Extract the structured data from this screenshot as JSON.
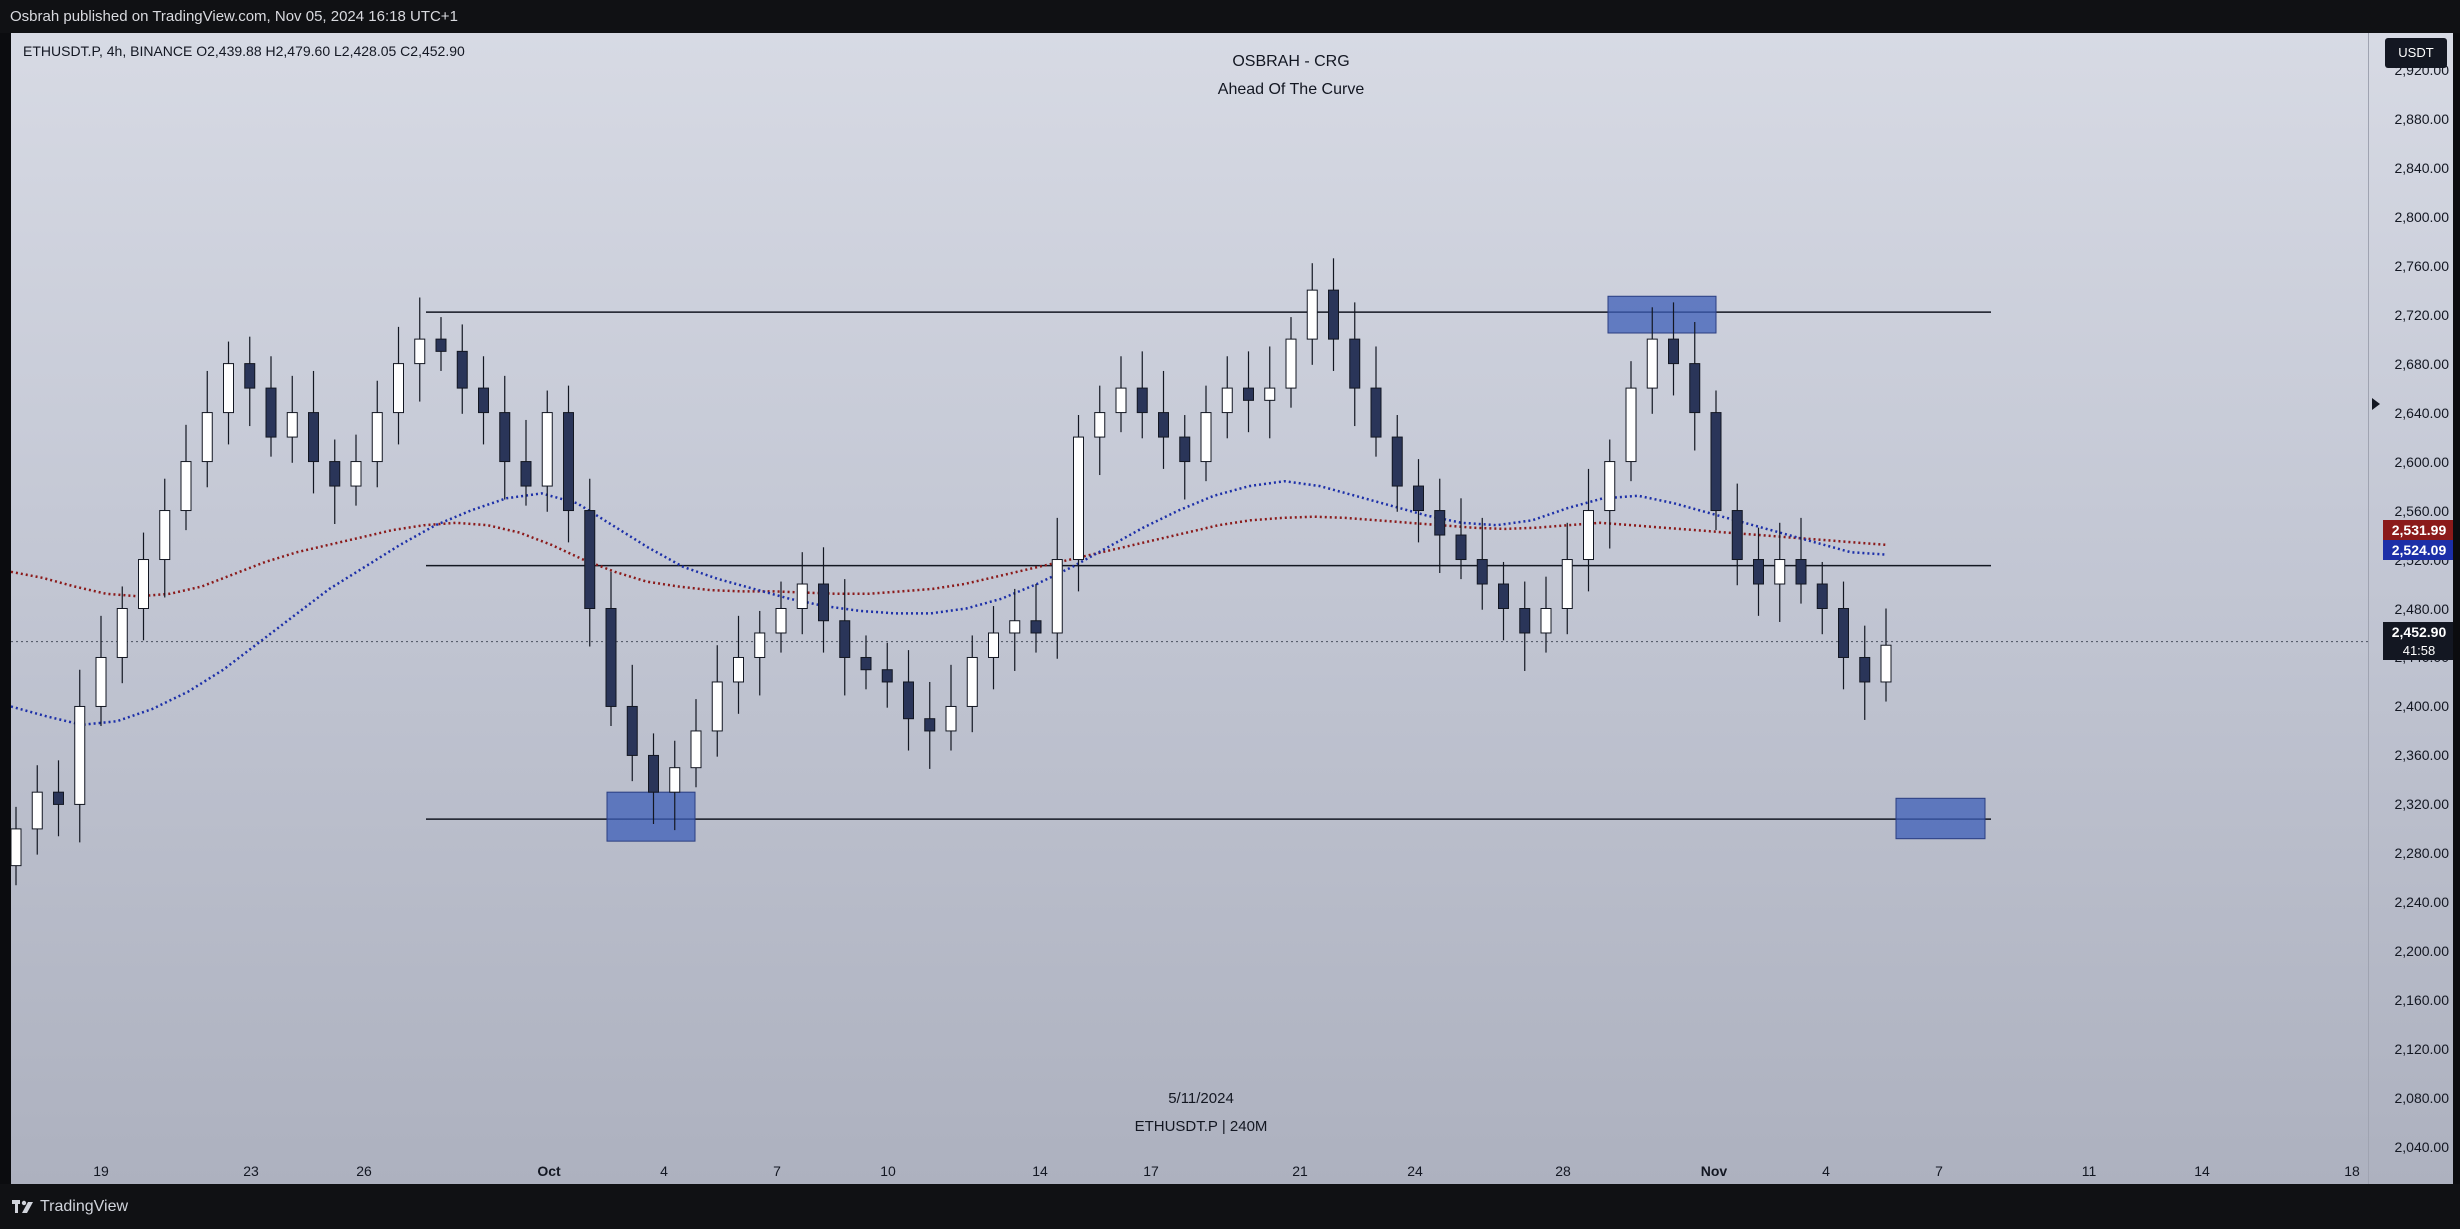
{
  "top_bar": {
    "text": "Osbrah published on TradingView.com, Nov 05, 2024 16:18 UTC+1"
  },
  "legend": {
    "text": "ETHUSDT.P, 4h, BINANCE  O2,439.88  H2,479.60  L2,428.05  C2,452.90"
  },
  "header": {
    "title": "OSBRAH - CRG",
    "subtitle": "Ahead Of The Curve"
  },
  "watermark": {
    "date": "5/11/2024",
    "symbol": "ETHUSDT.P | 240M"
  },
  "currency_button": "USDT",
  "price_tags": {
    "ma_red": "2,531.99",
    "ma_blue": "2,524.09",
    "last": "2,452.90",
    "countdown": "41:58"
  },
  "price_axis": {
    "labels": [
      "2,920.00",
      "2,880.00",
      "2,840.00",
      "2,800.00",
      "2,760.00",
      "2,720.00",
      "2,680.00",
      "2,640.00",
      "2,600.00",
      "2,560.00",
      "2,520.00",
      "2,480.00",
      "2,440.00",
      "2,400.00",
      "2,360.00",
      "2,320.00",
      "2,280.00",
      "2,240.00",
      "2,200.00",
      "2,160.00",
      "2,120.00",
      "2,080.00",
      "2,040.00"
    ]
  },
  "time_axis": {
    "labels": [
      {
        "text": "19",
        "bold": false
      },
      {
        "text": "23",
        "bold": false
      },
      {
        "text": "26",
        "bold": false
      },
      {
        "text": "Oct",
        "bold": true
      },
      {
        "text": "4",
        "bold": false
      },
      {
        "text": "7",
        "bold": false
      },
      {
        "text": "10",
        "bold": false
      },
      {
        "text": "14",
        "bold": false
      },
      {
        "text": "17",
        "bold": false
      },
      {
        "text": "21",
        "bold": false
      },
      {
        "text": "24",
        "bold": false
      },
      {
        "text": "28",
        "bold": false
      },
      {
        "text": "Nov",
        "bold": true
      },
      {
        "text": "4",
        "bold": false
      },
      {
        "text": "7",
        "bold": false
      },
      {
        "text": "11",
        "bold": false
      },
      {
        "text": "14",
        "bold": false
      },
      {
        "text": "18",
        "bold": false
      }
    ]
  },
  "colors": {
    "candle_up": "#ffffff",
    "candle_down": "#2a3559",
    "wick": "#131722",
    "ma_red": "#8b1a1a",
    "ma_blue": "#1c2fa8",
    "zone_fill": "#3d5fb8",
    "line": "#131722"
  },
  "drawings": {
    "horizontal_levels": [
      2722,
      2515,
      2308
    ],
    "supply_zones": [
      {
        "price_top": 2735,
        "price_bottom": 2705
      },
      {
        "price_top": 2330,
        "price_bottom": 2290
      },
      {
        "price_top": 2325,
        "price_bottom": 2292
      }
    ]
  },
  "chart_data": {
    "type": "candlestick",
    "symbol": "ETHUSDT.P",
    "interval": "4h",
    "ylim": [
      2010,
      2950
    ],
    "series": [
      {
        "key": "close",
        "values": [
          2300,
          2330,
          2320,
          2400,
          2440,
          2480,
          2520,
          2560,
          2600,
          2640,
          2680,
          2660,
          2620,
          2640,
          2600,
          2580,
          2600,
          2640,
          2680,
          2700,
          2690,
          2660,
          2640,
          2600,
          2580,
          2640,
          2560,
          2480,
          2400,
          2360,
          2330,
          2350,
          2380,
          2420,
          2440,
          2460,
          2480,
          2500,
          2470,
          2440,
          2430,
          2420,
          2390,
          2380,
          2400,
          2440,
          2460,
          2470,
          2460,
          2520,
          2620,
          2640,
          2660,
          2640,
          2620,
          2600,
          2640,
          2660,
          2650,
          2660,
          2700,
          2740,
          2700,
          2660,
          2620,
          2580,
          2560,
          2540,
          2520,
          2500,
          2480,
          2460,
          2480,
          2520,
          2560,
          2600,
          2660,
          2700,
          2680,
          2640,
          2560,
          2520,
          2500,
          2520,
          2500,
          2480,
          2440,
          2420,
          2450
        ]
      }
    ],
    "moving_averages": [
      {
        "values": [
          2510,
          2505,
          2498,
          2492,
          2490,
          2492,
          2498,
          2508,
          2518,
          2526,
          2532,
          2538,
          2544,
          2548,
          2550,
          2548,
          2542,
          2532,
          2520,
          2510,
          2502,
          2498,
          2495,
          2494,
          2494,
          2493,
          2492,
          2492,
          2494,
          2496,
          2500,
          2506,
          2512,
          2518,
          2524,
          2530,
          2536,
          2542,
          2548,
          2552,
          2554,
          2555,
          2554,
          2552,
          2550,
          2548,
          2546,
          2545,
          2546,
          2548,
          2550,
          2548,
          2546,
          2544,
          2542,
          2540,
          2538,
          2536,
          2534,
          2532
        ]
      },
      {
        "values": [
          2400,
          2392,
          2385,
          2388,
          2398,
          2412,
          2430,
          2452,
          2474,
          2496,
          2514,
          2532,
          2548,
          2560,
          2570,
          2574,
          2566,
          2548,
          2530,
          2514,
          2504,
          2496,
          2488,
          2482,
          2478,
          2476,
          2476,
          2480,
          2488,
          2500,
          2514,
          2530,
          2546,
          2560,
          2572,
          2580,
          2584,
          2580,
          2572,
          2564,
          2556,
          2550,
          2548,
          2552,
          2562,
          2570,
          2572,
          2566,
          2558,
          2550,
          2542,
          2534,
          2526,
          2524
        ]
      }
    ]
  }
}
